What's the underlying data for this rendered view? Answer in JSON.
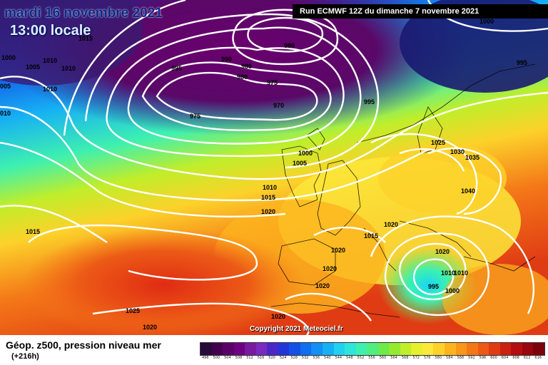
{
  "header": {
    "date": "mardi 16 novembre 2021",
    "time": "13:00 locale",
    "run": "Run ECMWF 12Z du dimanche 7 novembre 2021"
  },
  "copyright": "Copyright 2021 Meteociel.fr",
  "legend": {
    "title": "Géop. z500, pression niveau mer",
    "lead": "(+216h)",
    "scale": [
      {
        "v": "496",
        "c": "#2a0a3a"
      },
      {
        "v": "500",
        "c": "#440050"
      },
      {
        "v": "504",
        "c": "#5a0068"
      },
      {
        "v": "508",
        "c": "#6f0082"
      },
      {
        "v": "512",
        "c": "#7a1aa0"
      },
      {
        "v": "516",
        "c": "#7a2cc0"
      },
      {
        "v": "520",
        "c": "#4a28c8"
      },
      {
        "v": "524",
        "c": "#2236d8"
      },
      {
        "v": "528",
        "c": "#1450e6"
      },
      {
        "v": "532",
        "c": "#106ef0"
      },
      {
        "v": "536",
        "c": "#1290f4"
      },
      {
        "v": "540",
        "c": "#16b0f4"
      },
      {
        "v": "544",
        "c": "#22d0f2"
      },
      {
        "v": "548",
        "c": "#2ee6d8"
      },
      {
        "v": "552",
        "c": "#3ef0b0"
      },
      {
        "v": "556",
        "c": "#50ee80"
      },
      {
        "v": "560",
        "c": "#6eea4a"
      },
      {
        "v": "564",
        "c": "#96ea2e"
      },
      {
        "v": "568",
        "c": "#c0ee2a"
      },
      {
        "v": "572",
        "c": "#e6f02c"
      },
      {
        "v": "576",
        "c": "#fce83a"
      },
      {
        "v": "580",
        "c": "#fcd22a"
      },
      {
        "v": "584",
        "c": "#fcb41e"
      },
      {
        "v": "588",
        "c": "#fa961a"
      },
      {
        "v": "592",
        "c": "#f47818"
      },
      {
        "v": "596",
        "c": "#ec5a16"
      },
      {
        "v": "600",
        "c": "#e03c14"
      },
      {
        "v": "604",
        "c": "#cc2012"
      },
      {
        "v": "608",
        "c": "#b40e10"
      },
      {
        "v": "612",
        "c": "#98060e"
      },
      {
        "v": "616",
        "c": "#7c020c"
      }
    ]
  },
  "pressure_labels": [
    {
      "t": "1000"
    },
    {
      "t": "1005"
    },
    {
      "t": "1010"
    },
    {
      "t": "1010"
    },
    {
      "t": "1010"
    },
    {
      "t": "005"
    },
    {
      "t": "010"
    },
    {
      "t": "1015"
    },
    {
      "t": "990"
    },
    {
      "t": "995"
    },
    {
      "t": "985"
    },
    {
      "t": "980"
    },
    {
      "t": "980"
    },
    {
      "t": "975"
    },
    {
      "t": "975"
    },
    {
      "t": "970"
    },
    {
      "t": "995"
    },
    {
      "t": "1000"
    },
    {
      "t": "995"
    },
    {
      "t": "1000"
    },
    {
      "t": "1005"
    },
    {
      "t": "1010"
    },
    {
      "t": "1015"
    },
    {
      "t": "1020"
    },
    {
      "t": "1025"
    },
    {
      "t": "1030"
    },
    {
      "t": "1035"
    },
    {
      "t": "1040"
    },
    {
      "t": "1020"
    },
    {
      "t": "1020"
    },
    {
      "t": "1020"
    },
    {
      "t": "1020"
    },
    {
      "t": "1015"
    },
    {
      "t": "1020"
    },
    {
      "t": "1010"
    },
    {
      "t": "1010"
    },
    {
      "t": "995"
    },
    {
      "t": "1000"
    },
    {
      "t": "1025"
    },
    {
      "t": "1020"
    },
    {
      "t": "1020"
    },
    {
      "t": "1015"
    }
  ]
}
